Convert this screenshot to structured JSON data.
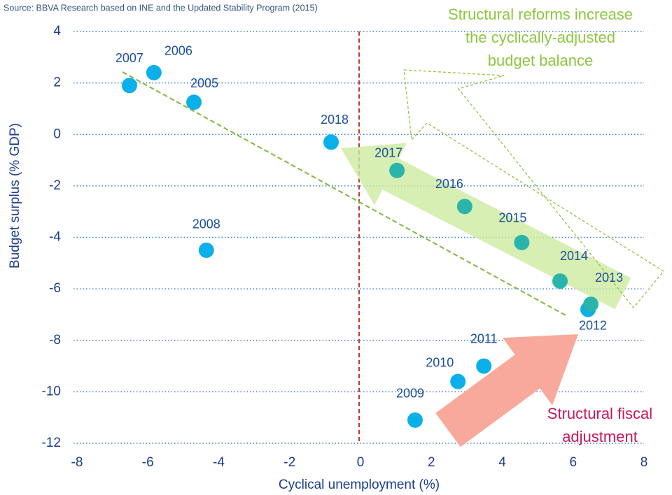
{
  "chart_data": {
    "type": "scatter",
    "source": "Source: BBVA Research based on INE and the Updated Stability Program (2015)",
    "xlabel": "Cyclical unemployment (%)",
    "ylabel": "Budget surplus (% GDP)",
    "annotations": [
      {
        "lines": [
          "Structural reforms increase",
          "the cyclically-adjusted",
          "budget balance"
        ],
        "color": "#8dc63f"
      },
      {
        "lines": [
          "Structural fiscal",
          "adjustment"
        ],
        "color": "#c8175e"
      }
    ],
    "labels": [
      "2005",
      "2006",
      "2007",
      "2008",
      "2009",
      "2010",
      "2011",
      "2012",
      "2013",
      "2014",
      "2015",
      "2016",
      "2017",
      "2018"
    ],
    "x": [
      -4.7,
      -5.83,
      -6.52,
      -4.35,
      1.54,
      2.75,
      3.48,
      6.42,
      6.5,
      5.63,
      4.55,
      2.94,
      1.03,
      -0.83
    ],
    "values": [
      1.25,
      2.4,
      1.9,
      -4.5,
      -11.1,
      -9.6,
      -9.0,
      -6.8,
      -6.6,
      -5.7,
      -4.2,
      -2.8,
      -1.4,
      -0.3
    ],
    "point_colors": [
      "#0bb0ea",
      "#0bb0ea",
      "#0bb0ea",
      "#0bb0ea",
      "#0bb0ea",
      "#0bb0ea",
      "#0bb0ea",
      "#0bb0ea",
      "#2bb5aa",
      "#2bb5aa",
      "#2bb5aa",
      "#2bb5aa",
      "#2bb5aa",
      "#0bb0ea"
    ],
    "xlim": [
      -8,
      8
    ],
    "ylim": [
      -12,
      4
    ],
    "xticks": [
      -8,
      -6,
      -4,
      -2,
      0,
      2,
      4,
      6,
      8
    ],
    "yticks": [
      -12,
      -10,
      -8,
      -6,
      -4,
      -2,
      0,
      2,
      4
    ],
    "grid": true
  }
}
